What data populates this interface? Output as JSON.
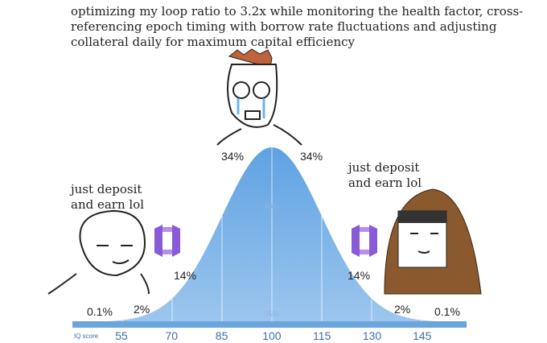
{
  "caption": [
    "optimizing my loop ratio to 3.2x while monitoring the health factor, cross-",
    "referencing epoch timing with borrow rate fluctuations and adjusting",
    "collateral daily for maximum capital efficiency"
  ],
  "left_label": [
    "just deposit",
    "and earn lol"
  ],
  "right_label": [
    "just deposit",
    "and earn lol"
  ],
  "curve_labels": [
    "0.1%",
    "2%",
    "14%",
    "34%",
    "34%",
    "14%",
    "2%",
    "0.1%"
  ],
  "inner_labels": [
    "68%",
    "95%"
  ],
  "axis": {
    "title": "IQ score",
    "ticks": [
      "55",
      "70",
      "85",
      "100",
      "115",
      "130",
      "145"
    ]
  }
}
